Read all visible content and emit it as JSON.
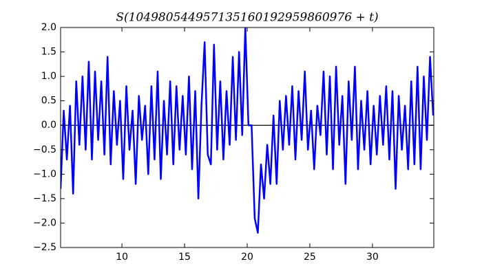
{
  "chart_data": {
    "type": "line",
    "title": "S(104980544957135160192959860976 + t)",
    "x": [
      5.1,
      5.35,
      5.6,
      5.85,
      6.1,
      6.35,
      6.6,
      6.85,
      7.1,
      7.35,
      7.6,
      7.85,
      8.1,
      8.35,
      8.6,
      8.85,
      9.1,
      9.35,
      9.6,
      9.85,
      10.1,
      10.35,
      10.6,
      10.85,
      11.1,
      11.35,
      11.6,
      11.85,
      12.1,
      12.35,
      12.6,
      12.85,
      13.1,
      13.35,
      13.6,
      13.85,
      14.1,
      14.35,
      14.6,
      14.85,
      15.1,
      15.35,
      15.6,
      15.85,
      16.1,
      16.35,
      16.6,
      16.85,
      17.1,
      17.35,
      17.6,
      17.85,
      18.1,
      18.35,
      18.6,
      18.85,
      19.1,
      19.35,
      19.6,
      19.85,
      20.1,
      20.35,
      20.6,
      20.85,
      21.1,
      21.35,
      21.6,
      21.85,
      22.1,
      22.35,
      22.6,
      22.85,
      23.1,
      23.35,
      23.6,
      23.85,
      24.1,
      24.35,
      24.6,
      24.85,
      25.1,
      25.35,
      25.6,
      25.85,
      26.1,
      26.35,
      26.6,
      26.85,
      27.1,
      27.35,
      27.6,
      27.85,
      28.1,
      28.35,
      28.6,
      28.85,
      29.1,
      29.35,
      29.6,
      29.85,
      30.1,
      30.35,
      30.6,
      30.85,
      31.1,
      31.35,
      31.6,
      31.85,
      32.1,
      32.35,
      32.6,
      32.85,
      33.1,
      33.35,
      33.6,
      33.85,
      34.1,
      34.35,
      34.6,
      34.85
    ],
    "values": [
      -1.3,
      0.3,
      -0.7,
      0.4,
      -1.4,
      0.9,
      -0.4,
      1.0,
      -0.5,
      1.3,
      -0.7,
      1.1,
      -0.3,
      0.9,
      -0.6,
      1.4,
      -0.8,
      0.7,
      -0.4,
      0.5,
      -1.1,
      0.8,
      -0.5,
      0.3,
      -1.2,
      0.6,
      -0.3,
      0.4,
      -1.0,
      0.8,
      -0.7,
      1.1,
      -1.1,
      0.5,
      -0.6,
      0.9,
      -0.8,
      0.8,
      -0.5,
      0.6,
      -0.6,
      1.0,
      -0.9,
      0.7,
      -1.5,
      0.4,
      1.7,
      -0.6,
      -0.8,
      1.65,
      -0.5,
      0.9,
      -0.7,
      0.7,
      -0.4,
      1.4,
      -0.3,
      1.5,
      -0.2,
      2.0,
      0.0,
      0.0,
      -1.9,
      -2.2,
      -0.8,
      -1.5,
      -0.4,
      -1.2,
      0.2,
      -1.2,
      0.5,
      -0.5,
      0.6,
      -0.4,
      0.8,
      -0.7,
      0.7,
      -0.3,
      1.1,
      -0.5,
      0.3,
      -0.9,
      0.4,
      -0.2,
      1.1,
      -0.6,
      1.0,
      -0.9,
      1.2,
      -0.4,
      0.6,
      -1.2,
      0.9,
      -0.3,
      1.2,
      -0.9,
      0.5,
      -0.5,
      0.7,
      -0.8,
      0.4,
      -0.6,
      0.6,
      -0.4,
      0.8,
      -0.7,
      0.7,
      -1.3,
      0.6,
      -0.5,
      0.4,
      -0.9,
      0.9,
      -0.8,
      1.2,
      -0.9,
      1.0,
      -0.3,
      1.4,
      0.2
    ],
    "color": "#0000ff",
    "hline": 0,
    "hline_color": "#000000",
    "xlim": [
      5.1,
      34.9
    ],
    "xticks": [
      10,
      15,
      20,
      25,
      30
    ],
    "ylim": [
      -2.5,
      2.0
    ],
    "yticks": [
      {
        "value": -2.5,
        "label": "−2.5"
      },
      {
        "value": -2.0,
        "label": "−2.0"
      },
      {
        "value": -1.5,
        "label": "−1.5"
      },
      {
        "value": -1.0,
        "label": "−1.0"
      },
      {
        "value": -0.5,
        "label": "−0.5"
      },
      {
        "value": 0.0,
        "label": "0.0"
      },
      {
        "value": 0.5,
        "label": "0.5"
      },
      {
        "value": 1.0,
        "label": "1.0"
      },
      {
        "value": 1.5,
        "label": "1.5"
      },
      {
        "value": 2.0,
        "label": "2.0"
      }
    ],
    "grid": false
  }
}
